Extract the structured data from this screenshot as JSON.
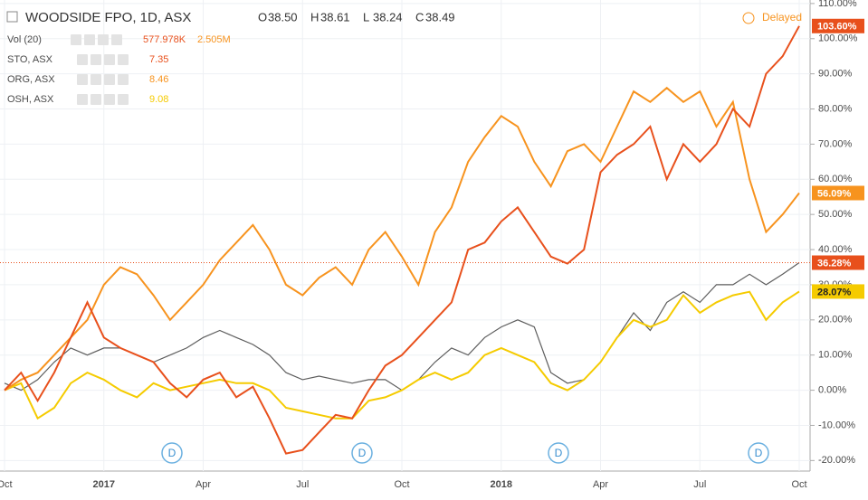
{
  "chart_data": {
    "type": "line",
    "title": "WOODSIDE FPO, 1D, ASX",
    "ohlc_labels": [
      "O",
      "H",
      "L",
      "C"
    ],
    "ohlc_values": [
      "38.50",
      "38.61",
      "38.24",
      "38.49"
    ],
    "volume": {
      "name": "Vol (20)",
      "values": [
        "577.978K",
        "2.505M"
      ]
    },
    "status": "Delayed",
    "dividend_markers": [
      "D",
      "D",
      "D",
      "D"
    ],
    "categories": [
      "Oct",
      null,
      null,
      null,
      null,
      null,
      "2017",
      null,
      null,
      null,
      null,
      null,
      "Apr",
      null,
      null,
      null,
      null,
      null,
      "Jul",
      null,
      null,
      null,
      null,
      null,
      "Oct",
      null,
      null,
      null,
      null,
      null,
      "2018",
      null,
      null,
      null,
      null,
      null,
      "Apr",
      null,
      null,
      null,
      null,
      null,
      "Jul",
      null,
      null,
      null,
      null,
      null,
      "Oct"
    ],
    "series": [
      {
        "name": "STO, ASX",
        "price": 7.35,
        "color": "#e8501c",
        "last_label": "103.60%",
        "values": [
          0,
          5,
          -3,
          5,
          15,
          25,
          15,
          12,
          10,
          8,
          2,
          -2,
          3,
          5,
          -2,
          1,
          -8,
          -18,
          -17,
          -12,
          -7,
          -8,
          0,
          7,
          10,
          15,
          20,
          25,
          40,
          42,
          48,
          52,
          45,
          38,
          36,
          40,
          62,
          67,
          70,
          75,
          60,
          70,
          65,
          70,
          80,
          75,
          90,
          95,
          103.6
        ]
      },
      {
        "name": "ORG, ASX",
        "price": 8.46,
        "color": "#f7931e",
        "last_label": "56.09%",
        "values": [
          0,
          3,
          5,
          10,
          15,
          20,
          30,
          35,
          33,
          27,
          20,
          25,
          30,
          37,
          42,
          47,
          40,
          30,
          27,
          32,
          35,
          30,
          40,
          45,
          38,
          30,
          45,
          52,
          65,
          72,
          78,
          75,
          65,
          58,
          68,
          70,
          65,
          75,
          85,
          82,
          86,
          82,
          85,
          75,
          82,
          60,
          45,
          50,
          56.09
        ]
      },
      {
        "name": "OSH, ASX",
        "price": 9.08,
        "color": "#f5cb00",
        "last_label": "28.07%",
        "values": [
          0,
          2,
          -8,
          -5,
          2,
          5,
          3,
          0,
          -2,
          2,
          0,
          1,
          2,
          3,
          2,
          2,
          0,
          -5,
          -6,
          -7,
          -8,
          -8,
          -3,
          -2,
          0,
          3,
          5,
          3,
          5,
          10,
          12,
          10,
          8,
          2,
          0,
          3,
          8,
          15,
          20,
          18,
          20,
          27,
          22,
          25,
          27,
          28,
          20,
          25,
          28.07
        ]
      },
      {
        "name": "WOODSIDE FPO",
        "color": "#5d5d5d",
        "last_label": "36.28%",
        "values": [
          2,
          0,
          3,
          8,
          12,
          10,
          12,
          12,
          10,
          8,
          10,
          12,
          15,
          17,
          15,
          13,
          10,
          5,
          3,
          4,
          3,
          2,
          3,
          3,
          0,
          3,
          8,
          12,
          10,
          15,
          18,
          20,
          18,
          5,
          2,
          3,
          8,
          15,
          22,
          17,
          25,
          28,
          25,
          30,
          30,
          33,
          30,
          33,
          36.28
        ]
      }
    ],
    "ylim": [
      -23,
      111
    ],
    "yticks": [
      {
        "value": -20,
        "label": "-20.00%"
      },
      {
        "value": -10,
        "label": "-10.00%"
      },
      {
        "value": 0,
        "label": "0.00%"
      },
      {
        "value": 10,
        "label": "10.00%"
      },
      {
        "value": 20,
        "label": "20.00%"
      },
      {
        "value": 30,
        "label": "30.00%"
      },
      {
        "value": 40,
        "label": "40.00%"
      },
      {
        "value": 50,
        "label": "50.00%"
      },
      {
        "value": 60,
        "label": "60.00%"
      },
      {
        "value": 70,
        "label": "70.00%"
      },
      {
        "value": 80,
        "label": "80.00%"
      },
      {
        "value": 90,
        "label": "90.00%"
      },
      {
        "value": 100,
        "label": "100.00%"
      },
      {
        "value": 110,
        "label": "110.00%"
      }
    ],
    "grid": true
  }
}
